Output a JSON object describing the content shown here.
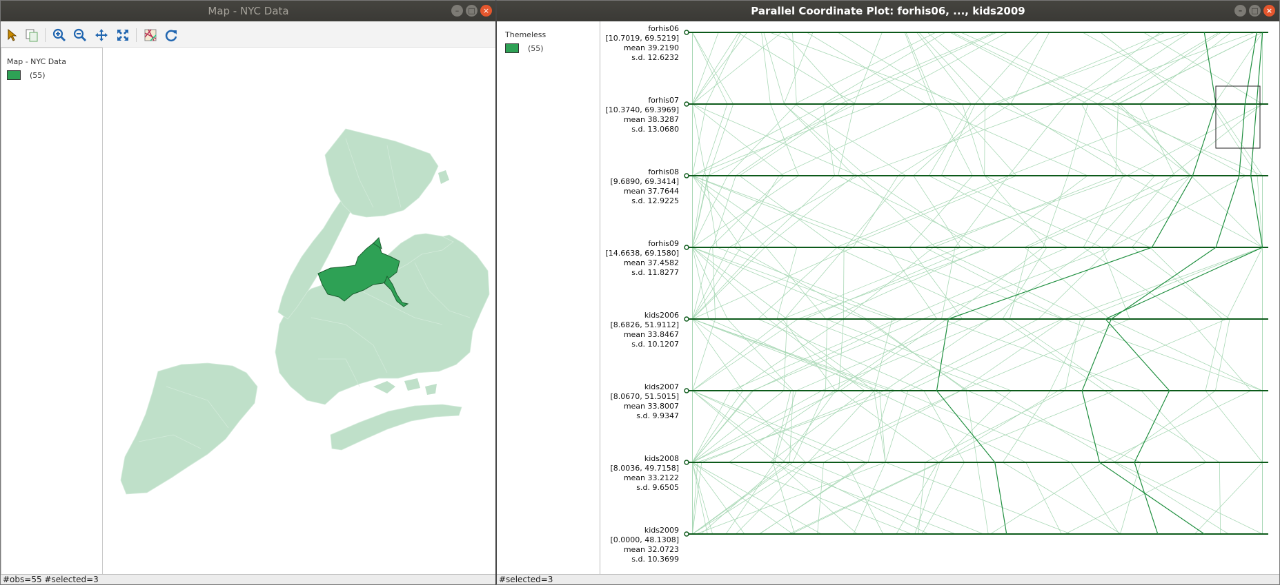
{
  "map_window": {
    "title": "Map - NYC Data",
    "toolbar": [
      {
        "icon": "select-arrow-icon",
        "color": "#c88a00"
      },
      {
        "icon": "copy-icon",
        "color": "#6a6"
      },
      {
        "icon": "zoom-in-icon",
        "color": "#2166b0"
      },
      {
        "icon": "zoom-out-icon",
        "color": "#2166b0"
      },
      {
        "icon": "pan-icon",
        "color": "#2166b0"
      },
      {
        "icon": "fit-extent-icon",
        "color": "#2166b0"
      },
      {
        "icon": "basemap-icon",
        "color": "#b35"
      },
      {
        "icon": "refresh-icon",
        "color": "#2166b0"
      }
    ],
    "legend": {
      "title": "Map - NYC Data",
      "count": "(55)",
      "color": "#2ea155"
    },
    "status": "#obs=55 #selected=3",
    "base_color": "#bfe0c9",
    "selected_color": "#2ea155"
  },
  "pcp_window": {
    "title": "Parallel Coordinate Plot: forhis06, ..., kids2009",
    "legend": {
      "title": "Themeless",
      "count": "(55)",
      "color": "#2ea155"
    },
    "status": "#selected=3"
  },
  "chart_data": {
    "type": "parallel-coordinates",
    "n_obs": 55,
    "n_selected": 3,
    "variables": [
      {
        "name": "forhis06",
        "range": "[10.7019, 69.5219]",
        "mean": "39.2190",
        "sd": "12.6232"
      },
      {
        "name": "forhis07",
        "range": "[10.3740, 69.3969]",
        "mean": "38.3287",
        "sd": "13.0680"
      },
      {
        "name": "forhis08",
        "range": "[9.6890, 69.3414]",
        "mean": "37.7644",
        "sd": "12.9225"
      },
      {
        "name": "forhis09",
        "range": "[14.6638, 69.1580]",
        "mean": "37.4582",
        "sd": "11.8277"
      },
      {
        "name": "kids2006",
        "range": "[8.6826, 51.9112]",
        "mean": "33.8467",
        "sd": "10.1207"
      },
      {
        "name": "kids2007",
        "range": "[8.0670, 51.5015]",
        "mean": "33.8007",
        "sd": "9.9347"
      },
      {
        "name": "kids2008",
        "range": "[8.0036, 49.7158]",
        "mean": "33.2122",
        "sd": "9.6505"
      },
      {
        "name": "kids2009",
        "range": "[0.0000, 48.1308]",
        "mean": "32.0723",
        "sd": "10.3699"
      }
    ],
    "selected_lines": [
      [
        0.89,
        0.91,
        0.87,
        0.8,
        0.45,
        0.43,
        0.53,
        0.55
      ],
      [
        0.98,
        0.96,
        0.95,
        0.91,
        0.73,
        0.68,
        0.71,
        0.89
      ],
      [
        0.99,
        0.98,
        0.97,
        0.99,
        0.72,
        0.83,
        0.77,
        0.81
      ]
    ],
    "colors": {
      "axis": "#0c5a1a",
      "line": "#a8d8b5",
      "selected": "#1f8f3f"
    }
  }
}
